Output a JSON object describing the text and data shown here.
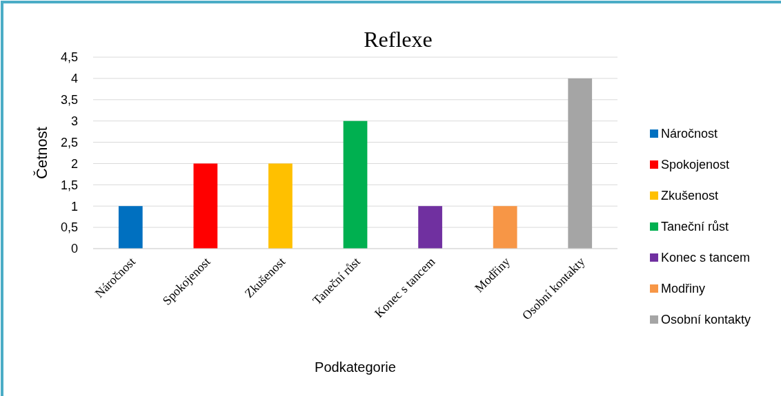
{
  "chart_data": {
    "type": "bar",
    "title": "Reflexe",
    "xlabel": "Podkategorie",
    "ylabel": "Četnost",
    "categories": [
      "Náročnost",
      "Spokojenost",
      "Zkušenost",
      "Taneční růst",
      "Konec s tancem",
      "Modřiny",
      "Osobní kontakty"
    ],
    "stacked": true,
    "series": [
      {
        "name": "Náročnost",
        "color": "#0070c0",
        "values": [
          1,
          null,
          null,
          null,
          null,
          null,
          null
        ]
      },
      {
        "name": "Spokojenost",
        "color": "#ff0000",
        "values": [
          null,
          2,
          null,
          null,
          null,
          null,
          null
        ]
      },
      {
        "name": "Zkušenost",
        "color": "#ffc000",
        "values": [
          null,
          null,
          2,
          null,
          null,
          null,
          null
        ]
      },
      {
        "name": "Taneční růst",
        "color": "#00b050",
        "values": [
          null,
          null,
          null,
          3,
          null,
          null,
          null
        ]
      },
      {
        "name": "Konec s tancem",
        "color": "#7030a0",
        "values": [
          null,
          null,
          null,
          null,
          1,
          null,
          null
        ]
      },
      {
        "name": "Modřiny",
        "color": "#f79646",
        "values": [
          null,
          null,
          null,
          null,
          null,
          1,
          null
        ]
      },
      {
        "name": "Osobní kontakty",
        "color": "#a5a5a5",
        "values": [
          null,
          null,
          null,
          null,
          null,
          null,
          4
        ]
      }
    ],
    "ylim": [
      0,
      4.5
    ],
    "yticks": [
      0,
      {
        "value": 0.5,
        "label": "0,5"
      },
      1,
      {
        "value": 1.5,
        "label": "1,5"
      },
      2,
      {
        "value": 2.5,
        "label": "2,5"
      },
      3,
      {
        "value": 3.5,
        "label": "3,5"
      },
      4,
      {
        "value": 4.5,
        "label": "4,5"
      }
    ],
    "grid": "y",
    "legend": "right"
  }
}
